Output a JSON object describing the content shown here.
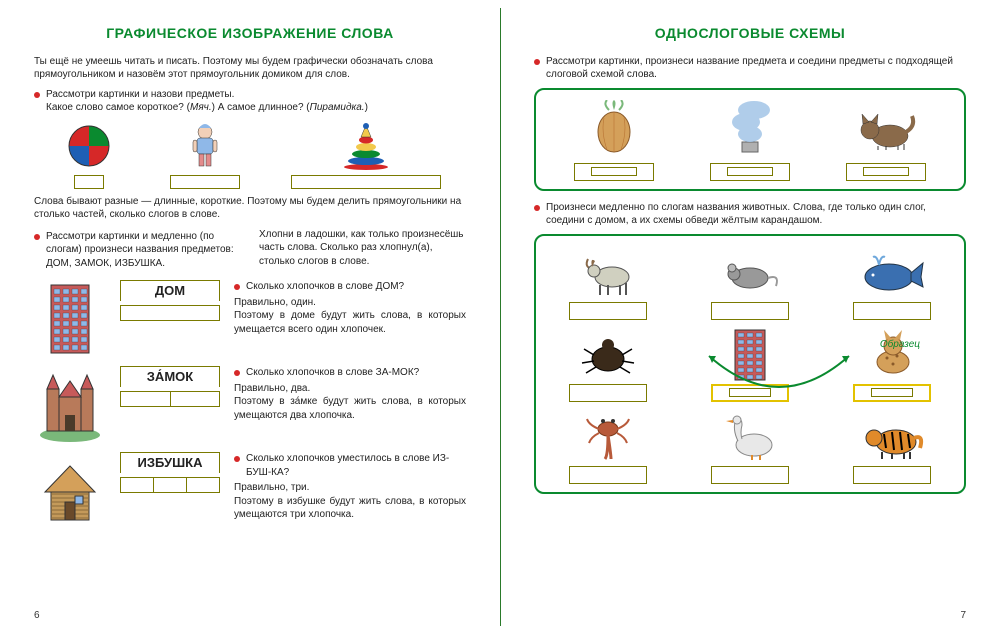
{
  "leftPage": {
    "title": "ГРАФИЧЕСКОЕ ИЗОБРАЖЕНИЕ СЛОВА",
    "intro": "Ты ещё не умеешь читать и писать. Поэтому мы будем графически обозначать слова прямоугольником и назовём этот прямоугольник домиком для слов.",
    "bullet1": "Рассмотри картинки и назови предметы.",
    "bullet1b": "Какое слово самое короткое? (",
    "bullet1b_i": "Мяч.",
    "bullet1b2": ") А самое длинное? (",
    "bullet1b2_i": "Пирамидка.",
    "bullet1b3": ")",
    "topImages": [
      {
        "name": "ball",
        "boxSize": "wb-s",
        "colors": [
          "#d62828",
          "#0a8a2f",
          "#1e5fb4"
        ]
      },
      {
        "name": "doll",
        "boxSize": "wb-m",
        "colors": [
          "#8fb8e8",
          "#e38b8b",
          "#4a4a4a"
        ]
      },
      {
        "name": "pyramid",
        "boxSize": "wb-l",
        "colors": [
          "#d62828",
          "#f2c94c",
          "#0a8a2f",
          "#1e5fb4",
          "#d62828"
        ]
      }
    ],
    "afterImages": "Слова бывают разные — длинные, короткие. Поэтому мы будем делить прямоугольники на столько частей, сколько слогов в слове.",
    "colLeft": "Рассмотри картинки и медленно (по слогам) произнеси названия предметов: ДОМ, ЗАМОК, ИЗБУШКА.",
    "colRight": "Хлопни в ладошки, как только произнесёшь часть слова. Сколько раз хлопнул(а), столько слогов в слове.",
    "houses": [
      {
        "img": "high-rise",
        "label": "ДОМ",
        "segments": 1,
        "q": "Сколько хлопочков в слове ДОМ?",
        "a": "Правильно, один.",
        "exp": "Поэтому в доме будут жить слова, в которых умещается всего один хлопочек."
      },
      {
        "img": "castle",
        "label": "ЗА́МОК",
        "segments": 2,
        "q": "Сколько хлопочков в слове ЗА-МОК?",
        "a": "Правильно, два.",
        "exp": "Поэтому в за́мке будут жить слова, в которых умещаются два хлопочка."
      },
      {
        "img": "hut",
        "label": "ИЗБУШКА",
        "segments": 3,
        "q": "Сколько хлопочков уместилось в слове ИЗ-БУШ-КА?",
        "a": "Правильно, три.",
        "exp": "Поэтому в избушке будут жить слова, в которых умещаются три хлопочка."
      }
    ],
    "pageNum": "6"
  },
  "rightPage": {
    "title": "ОДНОСЛОГОВЫЕ СХЕМЫ",
    "bullet1": "Рассмотри картинки, произнеси название предмета и соедини предметы с подходящей слоговой схемой слова.",
    "frame1": [
      {
        "name": "onion",
        "color": "#b87333"
      },
      {
        "name": "smoke",
        "color": "#6fa8dc"
      },
      {
        "name": "cat",
        "color": "#8a6a4a"
      }
    ],
    "bullet2": "Произнеси медленно по слогам названия животных. Слова, где только один слог, соедини с домом, а их схемы обведи жёлтым карандашом.",
    "sampleLabel": "Образец",
    "gridItems": [
      {
        "name": "goat",
        "color": "#a0a080"
      },
      {
        "name": "mouse",
        "color": "#888888"
      },
      {
        "name": "whale",
        "color": "#3a6fb0"
      },
      {
        "name": "beetle",
        "color": "#3a2a1a"
      },
      {
        "name": "house-center",
        "color": "#c75a5a",
        "isCenter": true
      },
      {
        "name": "lynx",
        "color": "#d4a05a",
        "isSample": true
      },
      {
        "name": "crab",
        "color": "#b85a3a"
      },
      {
        "name": "goose",
        "color": "#cccccc"
      },
      {
        "name": "tiger",
        "color": "#e08a2a"
      }
    ],
    "pageNum": "7"
  },
  "colors": {
    "titleGreen": "#0a8a2f",
    "bulletRed": "#d62828",
    "boxBorder": "#7a7a00",
    "yellow": "#e3c200",
    "arcGreen": "#0a8a2f"
  }
}
